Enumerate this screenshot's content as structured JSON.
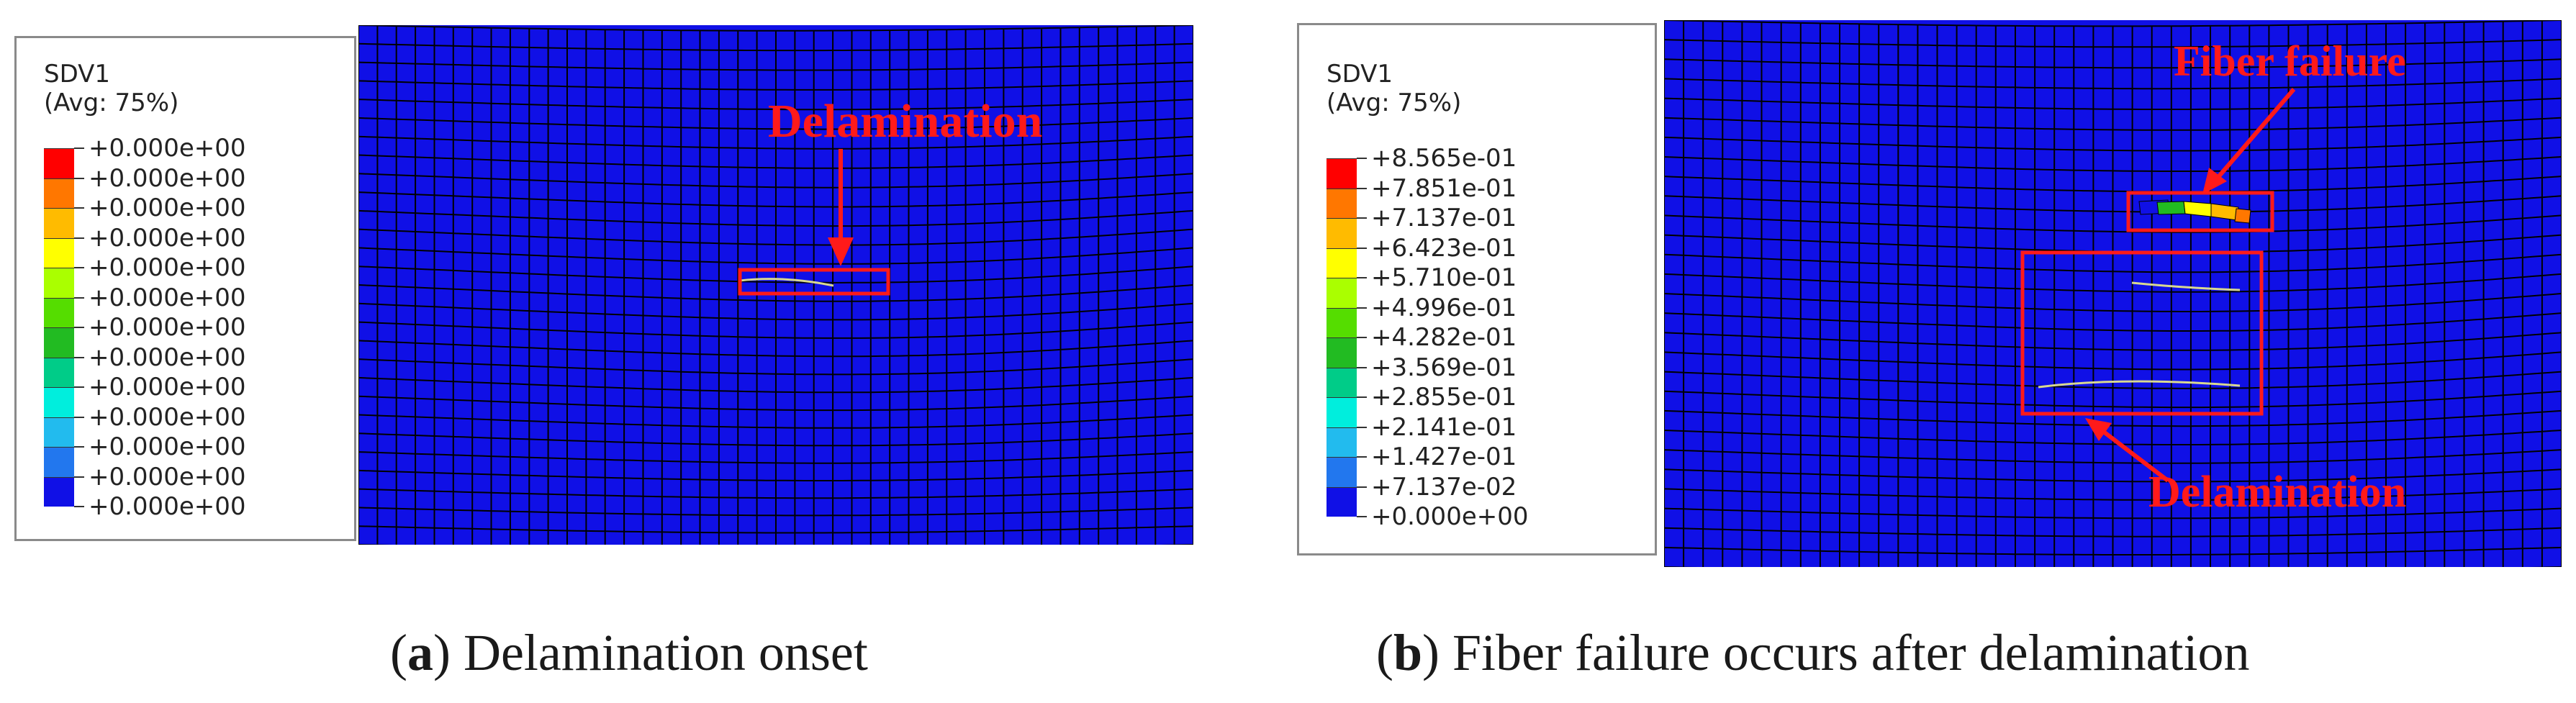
{
  "colors": {
    "mesh_fill": "#1010e6",
    "mesh_line": "#000000",
    "annotation": "#ff1a1a",
    "crack": "#d8d890"
  },
  "panel_a": {
    "legend": {
      "title": "SDV1",
      "subtitle": "(Avg: 75%)",
      "colors": [
        "#ff0000",
        "#ff7700",
        "#ffbb00",
        "#ffff00",
        "#aaff00",
        "#55dd00",
        "#22bb22",
        "#00cc88",
        "#00eedd",
        "#22bbee",
        "#2277ee",
        "#1010e6"
      ],
      "labels": [
        "+0.000e+00",
        "+0.000e+00",
        "+0.000e+00",
        "+0.000e+00",
        "+0.000e+00",
        "+0.000e+00",
        "+0.000e+00",
        "+0.000e+00",
        "+0.000e+00",
        "+0.000e+00",
        "+0.000e+00",
        "+0.000e+00",
        "+0.000e+00"
      ]
    },
    "annotation_label": "Delamination",
    "caption_letter": "a",
    "caption_text": "Delamination onset"
  },
  "panel_b": {
    "legend": {
      "title": "SDV1",
      "subtitle": "(Avg: 75%)",
      "colors": [
        "#ff0000",
        "#ff7700",
        "#ffbb00",
        "#ffff00",
        "#aaff00",
        "#55dd00",
        "#22bb22",
        "#00cc88",
        "#00eedd",
        "#22bbee",
        "#2277ee",
        "#1010e6"
      ],
      "labels": [
        "+8.565e-01",
        "+7.851e-01",
        "+7.137e-01",
        "+6.423e-01",
        "+5.710e-01",
        "+4.996e-01",
        "+4.282e-01",
        "+3.569e-01",
        "+2.855e-01",
        "+2.141e-01",
        "+1.427e-01",
        "+7.137e-02",
        "+0.000e+00"
      ]
    },
    "fiber_label": "Fiber failure",
    "delam_label": "Delamination",
    "caption_letter": "b",
    "caption_text": "Fiber failure occurs after delamination"
  }
}
